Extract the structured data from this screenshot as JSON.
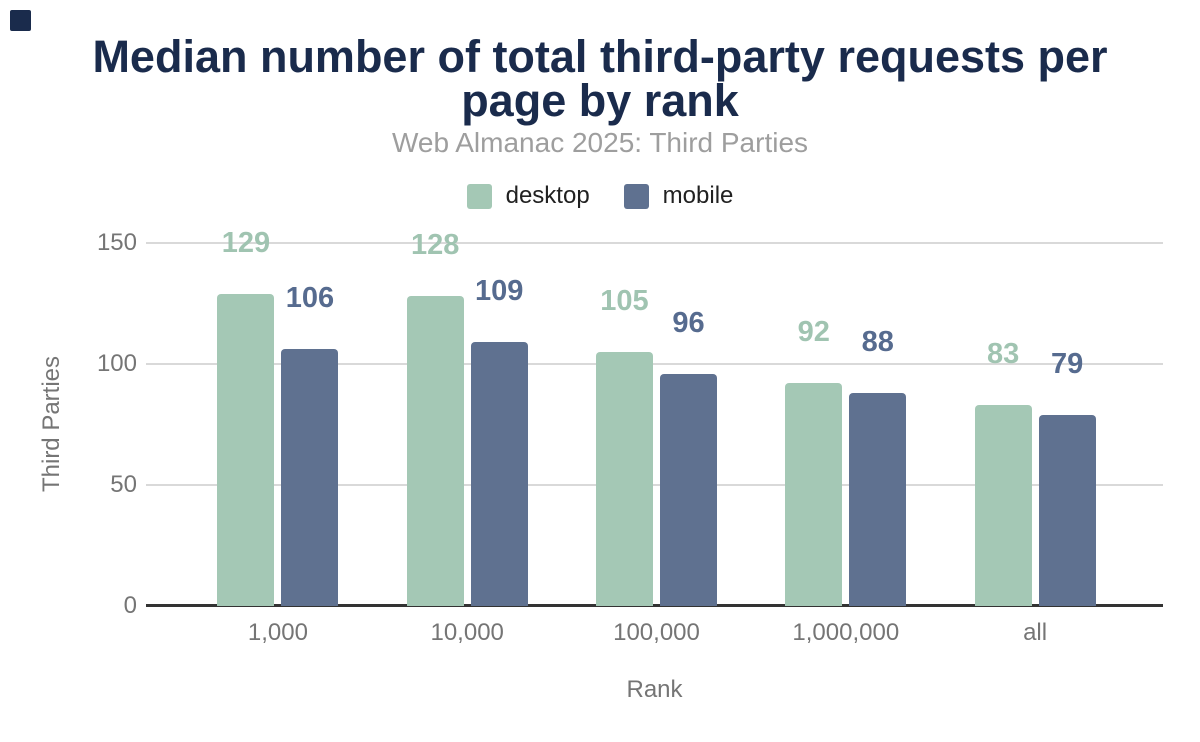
{
  "chart_data": {
    "type": "bar",
    "title": "Median number of total third-party requests per page by rank",
    "subtitle": "Web Almanac 2025: Third Parties",
    "categories": [
      "1,000",
      "10,000",
      "100,000",
      "1,000,000",
      "all"
    ],
    "series": [
      {
        "name": "desktop",
        "color": "#a4c8b5",
        "label_color": "#a0c4b1",
        "values": [
          129,
          128,
          105,
          92,
          83
        ]
      },
      {
        "name": "mobile",
        "color": "#5f7190",
        "label_color": "#566b8f",
        "values": [
          106,
          109,
          96,
          88,
          79
        ]
      }
    ],
    "xlabel": "Rank",
    "ylabel": "Third Parties",
    "yticks": [
      0,
      50,
      100,
      150
    ],
    "ylim": [
      0,
      150
    ],
    "grid": true,
    "legend_position": "top",
    "data_labels": true
  },
  "colors": {
    "title": "#1a2b4c",
    "subtitle": "#9e9e9e",
    "axis_text": "#757575",
    "legend_text": "#212121",
    "gridline": "#d9d9d9",
    "axis_line": "#333333",
    "corner_square": "#1a2b4c",
    "background": "#ffffff"
  }
}
